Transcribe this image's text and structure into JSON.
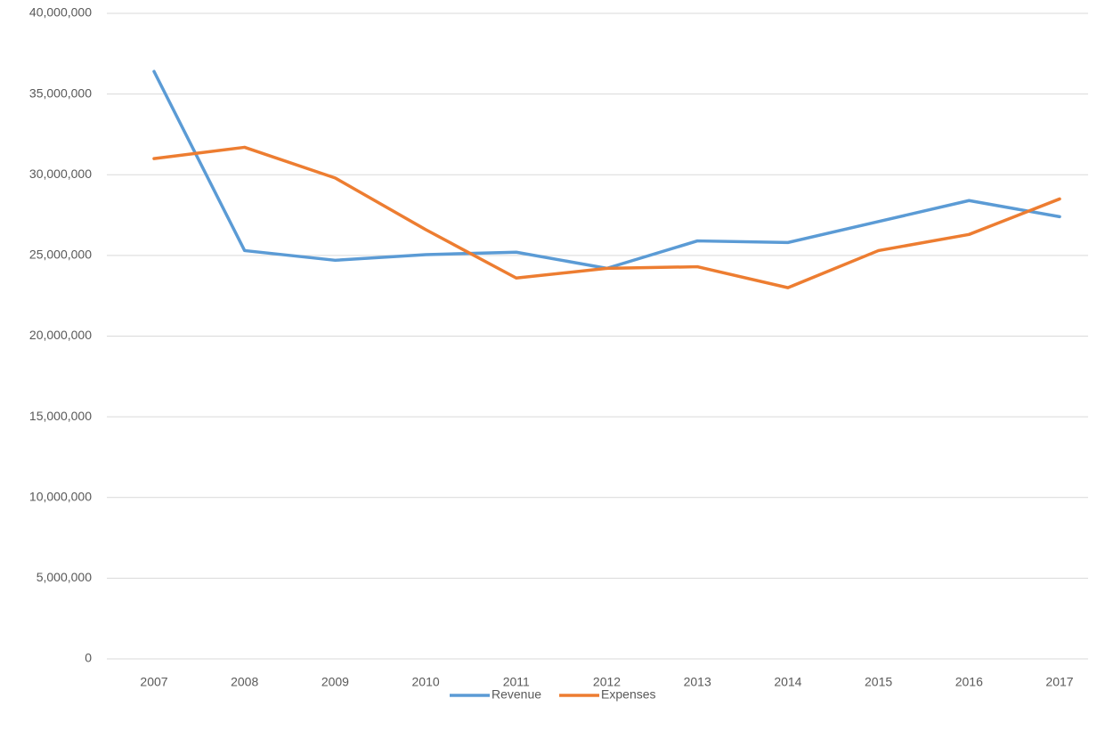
{
  "chart_data": {
    "type": "line",
    "categories": [
      "2007",
      "2008",
      "2009",
      "2010",
      "2011",
      "2012",
      "2013",
      "2014",
      "2015",
      "2016",
      "2017"
    ],
    "series": [
      {
        "name": "Revenue",
        "color": "#5b9bd5",
        "values": [
          36400000,
          25300000,
          24700000,
          25050000,
          25200000,
          24200000,
          25900000,
          25800000,
          27100000,
          28400000,
          27400000
        ]
      },
      {
        "name": "Expenses",
        "color": "#ed7d31",
        "values": [
          31000000,
          31700000,
          29800000,
          26600000,
          23600000,
          24200000,
          24300000,
          23000000,
          25300000,
          26300000,
          28500000
        ]
      }
    ],
    "ylim": [
      0,
      40000000
    ],
    "yticks": [
      0,
      {
        "value": 5000000,
        "label": "5,000,000"
      },
      {
        "value": 10000000,
        "label": "10,000,000"
      },
      {
        "value": 15000000,
        "label": "15,000,000"
      },
      {
        "value": 20000000,
        "label": "20,000,000"
      },
      {
        "value": 25000000,
        "label": "25,000,000"
      },
      {
        "value": 30000000,
        "label": "30,000,000"
      },
      {
        "value": 35000000,
        "label": "35,000,000"
      },
      {
        "value": 40000000,
        "label": "40,000,000"
      }
    ],
    "grid": true,
    "legend": "bottom"
  }
}
